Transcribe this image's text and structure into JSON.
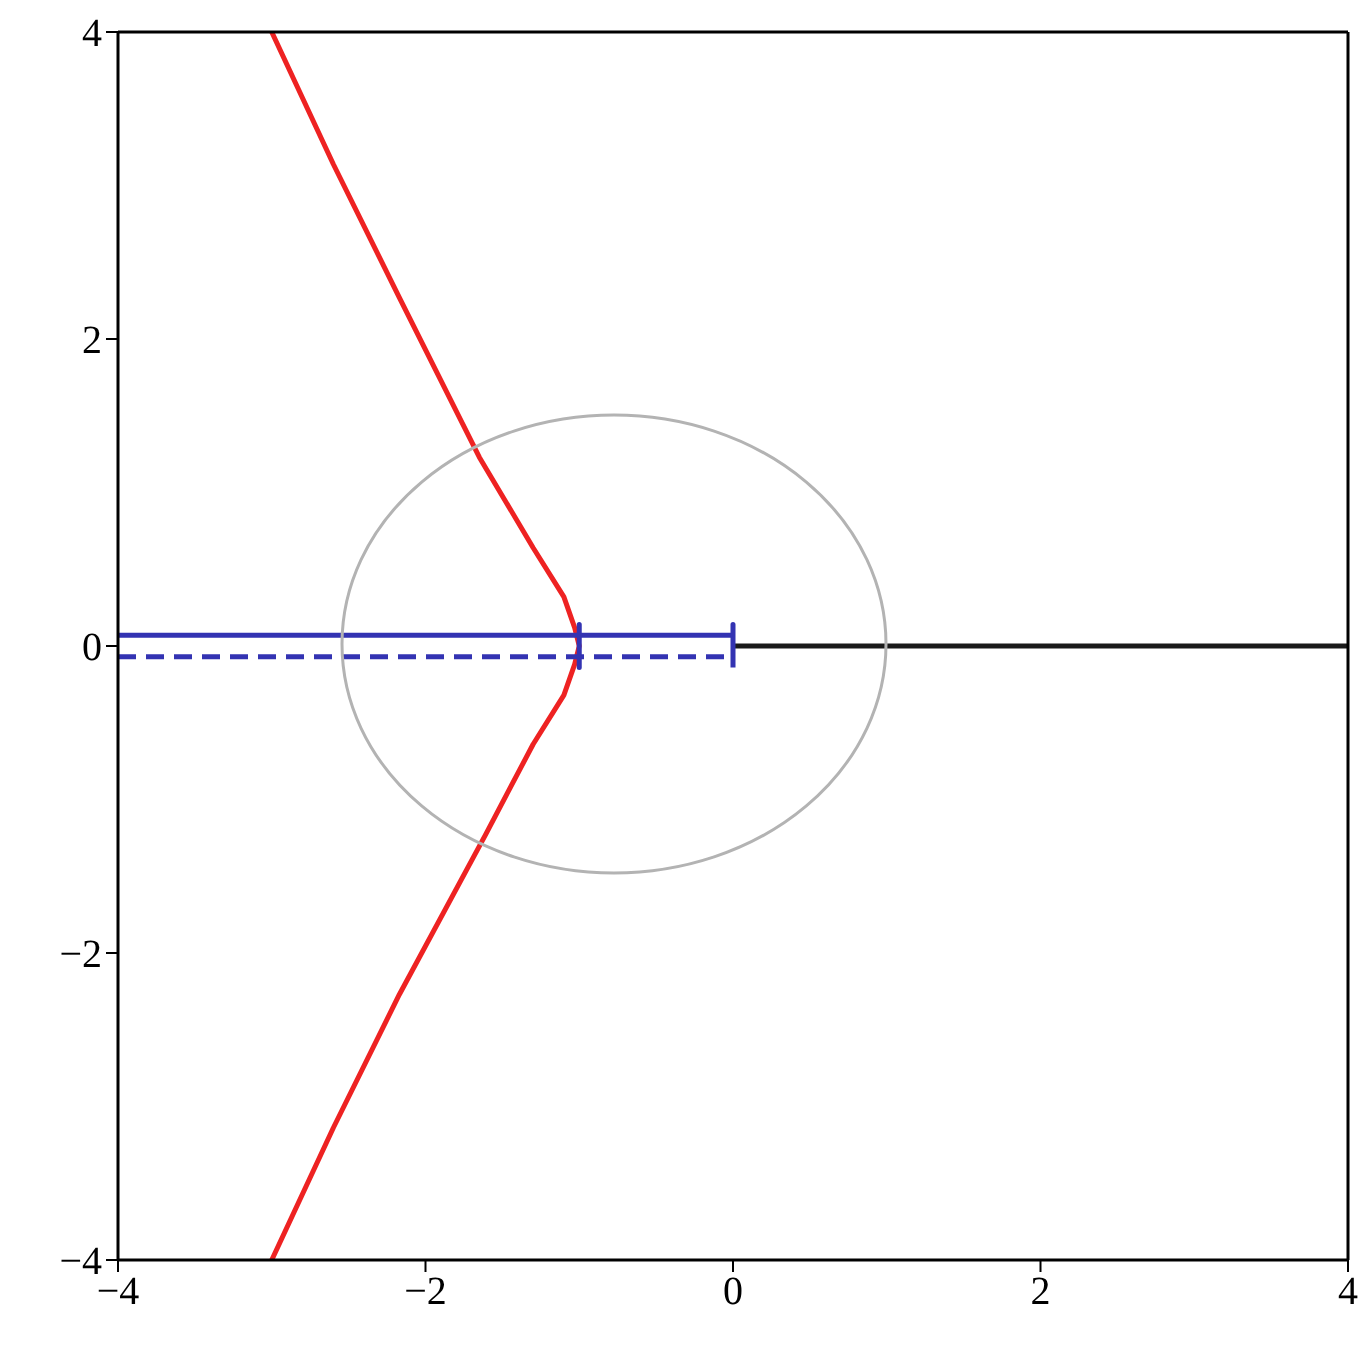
{
  "chart_data": {
    "type": "line",
    "xlim": [
      -4,
      4
    ],
    "ylim": [
      -4,
      4
    ],
    "xticks": [
      -4,
      -2,
      0,
      2,
      4
    ],
    "yticks": [
      -4,
      -2,
      0,
      2,
      4
    ],
    "grid": false,
    "marker": "none",
    "series": [
      {
        "color": "#1a1a1a",
        "x": [
          0,
          4
        ],
        "values": [
          0,
          0
        ]
      },
      {
        "color": "#ee2222",
        "x": [
          -3.0,
          -2.6,
          -2.17,
          -1.65,
          -1.3,
          -1.1,
          -1.03,
          -1.0,
          -1.03,
          -1.1,
          -1.3,
          -1.61,
          -2.17,
          -2.6,
          -3.0
        ],
        "values": [
          4,
          3.14,
          2.27,
          1.23,
          0.64,
          0.32,
          0.12,
          0,
          -0.12,
          -0.32,
          -0.64,
          -1.23,
          -2.27,
          -3.14,
          -4
        ]
      },
      {
        "color": "#3333b2",
        "line_style": "dashed",
        "x": [
          -4,
          0
        ],
        "values": [
          -0.07,
          -0.07
        ]
      },
      {
        "color": "#3333b2",
        "line_style": "solid",
        "x": [
          -4,
          -1,
          -1,
          -1,
          -1,
          0,
          0,
          0
        ],
        "values": [
          0.07,
          0.07,
          0.14,
          -0.14,
          0.07,
          0.07,
          0.14,
          -0.14
        ]
      }
    ]
  }
}
